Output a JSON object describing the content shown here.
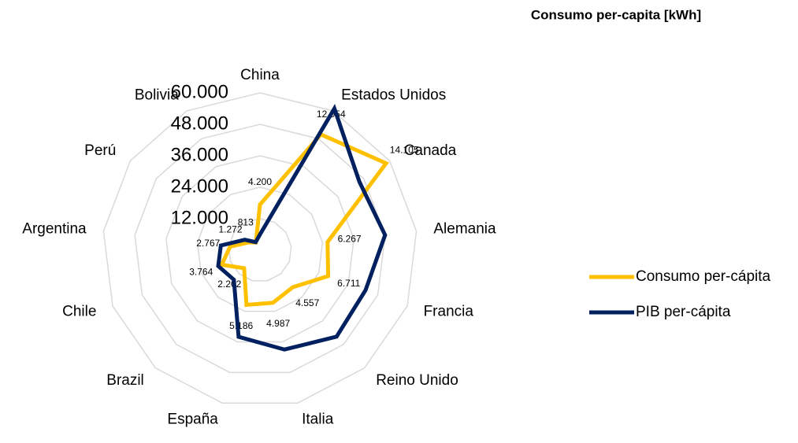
{
  "chart_data": {
    "type": "radar",
    "title": "Consumo per-capita [kWh]",
    "categories": [
      "China",
      "Estados Unidos",
      "Canada",
      "Alemania",
      "Francia",
      "Reino Unido",
      "Italia",
      "España",
      "Brazil",
      "Chile",
      "Argentina",
      "Perú",
      "Bolivia"
    ],
    "ylim": [
      0,
      60000
    ],
    "yticks": [
      {
        "value": 12000,
        "label": "12.000"
      },
      {
        "value": 24000,
        "label": "24.000"
      },
      {
        "value": 36000,
        "label": "36.000"
      },
      {
        "value": 48000,
        "label": "48.000"
      },
      {
        "value": 60000,
        "label": "60.000"
      }
    ],
    "y2lim": [
      0,
      14500
    ],
    "grid": true,
    "legend": "right",
    "series": [
      {
        "name": "Consumo per-cápita",
        "color": "#ffc000",
        "axis": "y2",
        "values": [
          4200,
          12054,
          14105,
          6267,
          6711,
          4557,
          4987,
          5186,
          2202,
          3764,
          2767,
          1272,
          813
        ],
        "value_labels": [
          "4.200",
          "12.054",
          "14.105",
          "6.267",
          "6.711",
          "4.557",
          "4.987",
          "5.186",
          "2.202",
          "3.764",
          "2.767",
          "1.272",
          "813"
        ]
      },
      {
        "name": "PIB per-cápita",
        "color": "#002060",
        "values": [
          6000,
          61000,
          46000,
          48000,
          43000,
          44000,
          39000,
          34000,
          15000,
          17000,
          15000,
          7000,
          3500
        ]
      }
    ]
  }
}
